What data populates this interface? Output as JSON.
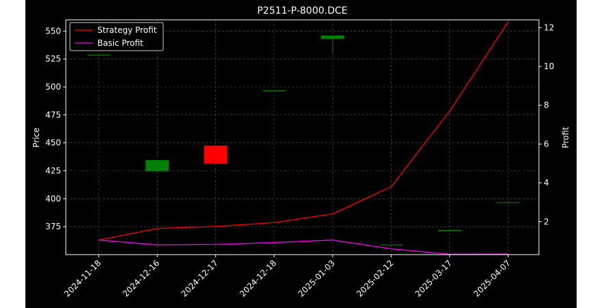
{
  "chart_data": {
    "type": "candlestick-line",
    "title": "P2511-P-8000.DCE",
    "ylabel_left": "Price",
    "ylabel_right": "Profit",
    "xlabel": "",
    "categories": [
      "2024-11-18",
      "2024-12-16",
      "2024-12-17",
      "2024-12-18",
      "2025-01-03",
      "2025-02-12",
      "2025-03-17",
      "2025-04-07"
    ],
    "ylim_left": [
      350,
      560
    ],
    "yticks_left": [
      375,
      400,
      425,
      450,
      475,
      500,
      525,
      550
    ],
    "ylim_right": [
      0.3,
      12.4
    ],
    "yticks_right": [
      2,
      4,
      6,
      8,
      10,
      12
    ],
    "grid": true,
    "legend_position": "top-left",
    "candles": [
      {
        "date": "2024-11-18",
        "open": 529.0,
        "close": 529.0,
        "high": 529.0,
        "low": 529.0
      },
      {
        "date": "2024-12-16",
        "open": 424.5,
        "close": 434.5,
        "high": 434.5,
        "low": 424.5
      },
      {
        "date": "2024-12-17",
        "open": 447.5,
        "close": 431.5,
        "high": 447.5,
        "low": 431.5
      },
      {
        "date": "2024-12-18",
        "open": 497.0,
        "close": 497.0,
        "high": 497.0,
        "low": 497.0
      },
      {
        "date": "2025-01-03",
        "open": 543.0,
        "close": 546.0,
        "high": 546.0,
        "low": 530.5
      },
      {
        "date": "2025-02-12",
        "open": 359.0,
        "close": 359.0,
        "high": 359.0,
        "low": 359.0
      },
      {
        "date": "2025-03-17",
        "open": 371.0,
        "close": 372.0,
        "high": 372.0,
        "low": 371.0
      },
      {
        "date": "2025-04-07",
        "open": 397.0,
        "close": 397.0,
        "high": 397.0,
        "low": 397.0
      }
    ],
    "series": [
      {
        "name": "Strategy Profit",
        "color": "#ff0000",
        "values": [
          1.05,
          1.65,
          1.75,
          1.95,
          2.4,
          3.8,
          7.7,
          12.3
        ]
      },
      {
        "name": "Basic Profit",
        "color": "#ff00ff",
        "values": [
          1.05,
          0.8,
          0.82,
          0.92,
          1.05,
          0.6,
          0.32,
          0.33
        ]
      }
    ],
    "up_color": "#008000",
    "down_color": "#ff0000"
  }
}
